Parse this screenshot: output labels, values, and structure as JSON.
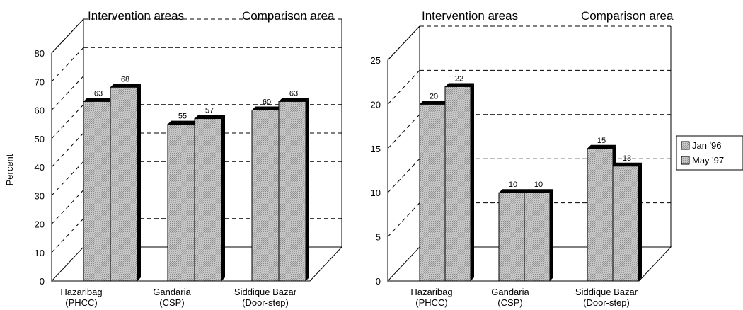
{
  "chart_data": [
    {
      "type": "bar",
      "section_labels": [
        "Intervention areas",
        "Comparison area"
      ],
      "ylabel": "Percent",
      "ylim": [
        0,
        80
      ],
      "yticks": [
        "0",
        "10",
        "20",
        "30",
        "40",
        "50",
        "60",
        "70",
        "80"
      ],
      "categories": [
        {
          "line1": "Hazaribag",
          "line2": "(PHCC)"
        },
        {
          "line1": "Gandaria",
          "line2": "(CSP)"
        },
        {
          "line1": "Siddique Bazar",
          "line2": "(Door-step)"
        }
      ],
      "series": [
        {
          "name": "Jan '96",
          "values": [
            63,
            55,
            60
          ]
        },
        {
          "name": "May '97",
          "values": [
            68,
            57,
            63
          ]
        }
      ],
      "grid": "dashed",
      "style": "3d"
    },
    {
      "type": "bar",
      "section_labels": [
        "Intervention areas",
        "Comparison area"
      ],
      "ylabel": "",
      "ylim": [
        0,
        25
      ],
      "yticks": [
        "0",
        "5",
        "10",
        "15",
        "20",
        "25"
      ],
      "categories": [
        {
          "line1": "Hazaribag",
          "line2": "(PHCC)"
        },
        {
          "line1": "Gandaria",
          "line2": "(CSP)"
        },
        {
          "line1": "Siddique Bazar",
          "line2": "(Door-step)"
        }
      ],
      "series": [
        {
          "name": "Jan '96",
          "values": [
            20,
            10,
            15
          ]
        },
        {
          "name": "May '97",
          "values": [
            22,
            10,
            13
          ]
        }
      ],
      "grid": "dashed",
      "style": "3d"
    }
  ],
  "legend": {
    "placement": "right",
    "items": [
      {
        "name": "Jan '96"
      },
      {
        "name": "May '97"
      }
    ]
  },
  "colors": {
    "bar_face": "#c4c4c4",
    "bar_shadow": "#000000",
    "gridline": "#000000",
    "background": "#ffffff"
  }
}
